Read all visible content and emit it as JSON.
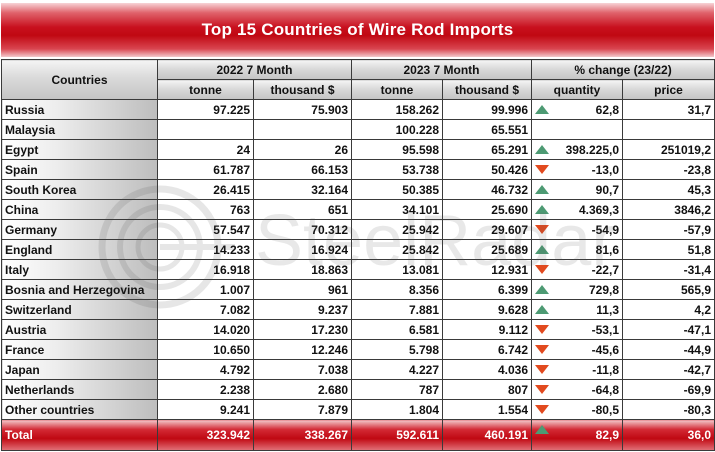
{
  "chart_data": {
    "type": "table",
    "title": "Top 15 Countries of Wire Rod Imports",
    "watermark_text": "SteelRadar",
    "header": {
      "countries": "Countries",
      "group1": "2022 7 Month",
      "group2": "2023 7 Month",
      "group3": "% change (23/22)",
      "tonne": "tonne",
      "thousand": "thousand $",
      "quantity": "quantity",
      "price": "price"
    },
    "rows": [
      {
        "country": "Russia",
        "t2022": "97.225",
        "v2022": "75.903",
        "t2023": "158.262",
        "v2023": "99.996",
        "trend": "up",
        "qty": "62,8",
        "price": "31,7"
      },
      {
        "country": "Malaysia",
        "t2022": "",
        "v2022": "",
        "t2023": "100.228",
        "v2023": "65.551",
        "trend": "",
        "qty": "",
        "price": ""
      },
      {
        "country": "Egypt",
        "t2022": "24",
        "v2022": "26",
        "t2023": "95.598",
        "v2023": "65.291",
        "trend": "up",
        "qty": "398.225,0",
        "price": "251019,2"
      },
      {
        "country": "Spain",
        "t2022": "61.787",
        "v2022": "66.153",
        "t2023": "53.738",
        "v2023": "50.426",
        "trend": "down",
        "qty": "-13,0",
        "price": "-23,8"
      },
      {
        "country": "South Korea",
        "t2022": "26.415",
        "v2022": "32.164",
        "t2023": "50.385",
        "v2023": "46.732",
        "trend": "up",
        "qty": "90,7",
        "price": "45,3"
      },
      {
        "country": "China",
        "t2022": "763",
        "v2022": "651",
        "t2023": "34.101",
        "v2023": "25.690",
        "trend": "up",
        "qty": "4.369,3",
        "price": "3846,2"
      },
      {
        "country": "Germany",
        "t2022": "57.547",
        "v2022": "70.312",
        "t2023": "25.942",
        "v2023": "29.607",
        "trend": "down",
        "qty": "-54,9",
        "price": "-57,9"
      },
      {
        "country": "England",
        "t2022": "14.233",
        "v2022": "16.924",
        "t2023": "25.842",
        "v2023": "25.689",
        "trend": "up",
        "qty": "81,6",
        "price": "51,8"
      },
      {
        "country": "Italy",
        "t2022": "16.918",
        "v2022": "18.863",
        "t2023": "13.081",
        "v2023": "12.931",
        "trend": "down",
        "qty": "-22,7",
        "price": "-31,4"
      },
      {
        "country": "Bosnia and Herzegovina",
        "t2022": "1.007",
        "v2022": "961",
        "t2023": "8.356",
        "v2023": "6.399",
        "trend": "up",
        "qty": "729,8",
        "price": "565,9"
      },
      {
        "country": "Switzerland",
        "t2022": "7.082",
        "v2022": "9.237",
        "t2023": "7.881",
        "v2023": "9.628",
        "trend": "up",
        "qty": "11,3",
        "price": "4,2"
      },
      {
        "country": "Austria",
        "t2022": "14.020",
        "v2022": "17.230",
        "t2023": "6.581",
        "v2023": "9.112",
        "trend": "down",
        "qty": "-53,1",
        "price": "-47,1"
      },
      {
        "country": "France",
        "t2022": "10.650",
        "v2022": "12.246",
        "t2023": "5.798",
        "v2023": "6.742",
        "trend": "down",
        "qty": "-45,6",
        "price": "-44,9"
      },
      {
        "country": "Japan",
        "t2022": "4.792",
        "v2022": "7.038",
        "t2023": "4.227",
        "v2023": "4.036",
        "trend": "down",
        "qty": "-11,8",
        "price": "-42,7"
      },
      {
        "country": "Netherlands",
        "t2022": "2.238",
        "v2022": "2.680",
        "t2023": "787",
        "v2023": "807",
        "trend": "down",
        "qty": "-64,8",
        "price": "-69,9"
      },
      {
        "country": "Other countries",
        "t2022": "9.241",
        "v2022": "7.879",
        "t2023": "1.804",
        "v2023": "1.554",
        "trend": "down",
        "qty": "-80,5",
        "price": "-80,3"
      }
    ],
    "total": {
      "country": "Total",
      "t2022": "323.942",
      "v2022": "338.267",
      "t2023": "592.611",
      "v2023": "460.191",
      "trend": "up",
      "qty": "82,9",
      "price": "36,0"
    },
    "colors": {
      "up": "#4d9a73",
      "down": "#e24a1f",
      "title_bg": "#c00812"
    }
  }
}
